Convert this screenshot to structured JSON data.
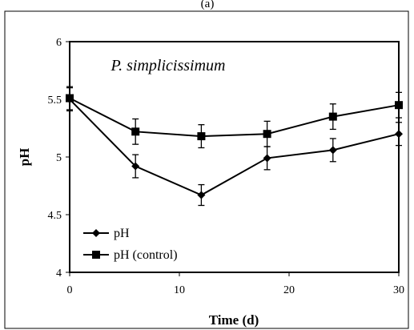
{
  "panel_label": "(a)",
  "chart_data": {
    "type": "line",
    "annotation": "P. simplicissimum",
    "xlabel": "Time (d)",
    "ylabel": "pH",
    "xlim": [
      0,
      30
    ],
    "ylim": [
      4,
      6
    ],
    "xticks": [
      0,
      10,
      20,
      30
    ],
    "yticks": [
      4,
      4.5,
      5,
      5.5,
      6
    ],
    "ytick_labels": [
      "4",
      "4.5",
      "5",
      "5.5",
      "6"
    ],
    "grid": false,
    "legend_position": "bottom-left",
    "series": [
      {
        "name": "pH",
        "marker": "diamond",
        "color": "#000000",
        "x": [
          0,
          6,
          12,
          18,
          24,
          30
        ],
        "y": [
          5.5,
          4.92,
          4.67,
          4.99,
          5.06,
          5.2
        ],
        "err": [
          0.1,
          0.1,
          0.09,
          0.1,
          0.1,
          0.1
        ]
      },
      {
        "name": "pH (control)",
        "marker": "square",
        "color": "#000000",
        "x": [
          0,
          6,
          12,
          18,
          24,
          30
        ],
        "y": [
          5.51,
          5.22,
          5.18,
          5.2,
          5.35,
          5.45
        ],
        "err": [
          0.1,
          0.11,
          0.1,
          0.11,
          0.11,
          0.11
        ]
      }
    ]
  }
}
